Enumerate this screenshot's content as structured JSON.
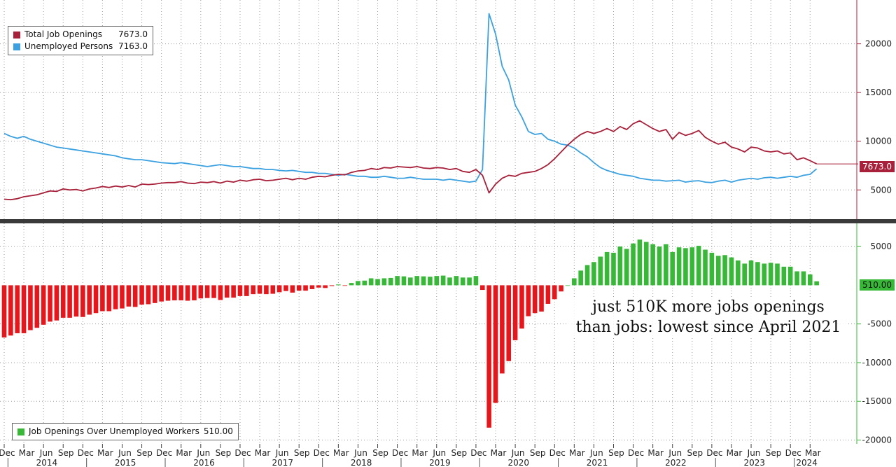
{
  "legend_top": [
    {
      "name": "Total Job Openings",
      "value": "7673.0",
      "color": "#a8203a"
    },
    {
      "name": "Unemployed Persons",
      "value": "7163.0",
      "color": "#3ba1e0"
    }
  ],
  "legend_bottom": [
    {
      "name": "Job Openings Over Unemployed Workers",
      "value": "510.00",
      "color": "#37b837"
    }
  ],
  "annotation": {
    "line1": "just 510K more jobs openings",
    "line2": "than jobs: lowest since April 2021"
  },
  "top_badge": "7673.0",
  "bottom_badge": "510.00",
  "x_axis": {
    "month_labels": [
      "Dec",
      "Mar",
      "Jun",
      "Sep"
    ],
    "years": [
      "2014",
      "2015",
      "2016",
      "2017",
      "2018",
      "2019",
      "2020",
      "2021",
      "2022",
      "2023",
      "2024"
    ],
    "last_labels": [
      "Dec",
      "Mar",
      "Jun"
    ]
  },
  "colors": {
    "openings": "#a8203a",
    "unemployed": "#3ba1e0",
    "positive": "#37b837",
    "negative": "#e8161b",
    "badge_top": "#a8203a",
    "badge_bottom": "#37b837"
  },
  "chart_data": [
    {
      "type": "line",
      "x_start": "2013-12",
      "x_end": "2024-06",
      "frequency": "monthly",
      "yaxis_ticks": [
        5000,
        10000,
        15000,
        20000
      ],
      "ylim": [
        2000,
        24500
      ],
      "series": [
        {
          "name": "Total Job Openings",
          "color": "#a8203a",
          "last_value": 7673.0,
          "values": [
            4050,
            4000,
            4100,
            4300,
            4400,
            4500,
            4700,
            4900,
            4850,
            5100,
            5000,
            5050,
            4900,
            5100,
            5200,
            5350,
            5250,
            5400,
            5300,
            5450,
            5300,
            5600,
            5550,
            5600,
            5700,
            5750,
            5750,
            5850,
            5700,
            5650,
            5800,
            5750,
            5850,
            5700,
            5900,
            5800,
            6000,
            5900,
            6050,
            6100,
            5950,
            6000,
            6100,
            6200,
            6050,
            6200,
            6100,
            6300,
            6400,
            6350,
            6500,
            6600,
            6550,
            6800,
            6950,
            7000,
            7200,
            7100,
            7300,
            7250,
            7400,
            7350,
            7300,
            7400,
            7250,
            7200,
            7300,
            7250,
            7100,
            7200,
            6900,
            6800,
            7100,
            6500,
            4700,
            5600,
            6200,
            6500,
            6400,
            6700,
            6800,
            6900,
            7200,
            7600,
            8200,
            8900,
            9600,
            10200,
            10700,
            11000,
            10800,
            11000,
            11300,
            11000,
            11500,
            11200,
            11800,
            12100,
            11700,
            11300,
            11000,
            11200,
            10200,
            10900,
            10600,
            10800,
            11100,
            10400,
            10000,
            9700,
            9900,
            9400,
            9200,
            8900,
            9400,
            9300,
            9000,
            8900,
            9000,
            8700,
            8800,
            8100,
            8300,
            8000,
            7673
          ]
        },
        {
          "name": "Unemployed Persons",
          "color": "#3ba1e0",
          "last_value": 7163.0,
          "values": [
            10800,
            10500,
            10300,
            10500,
            10200,
            10000,
            9800,
            9600,
            9400,
            9300,
            9200,
            9100,
            9000,
            8900,
            8800,
            8700,
            8600,
            8500,
            8300,
            8200,
            8100,
            8100,
            8000,
            7900,
            7800,
            7750,
            7700,
            7800,
            7700,
            7600,
            7500,
            7400,
            7500,
            7600,
            7500,
            7400,
            7400,
            7300,
            7200,
            7200,
            7100,
            7100,
            7000,
            6950,
            7000,
            6900,
            6800,
            6800,
            6700,
            6700,
            6600,
            6500,
            6600,
            6500,
            6400,
            6400,
            6300,
            6300,
            6400,
            6300,
            6200,
            6200,
            6300,
            6200,
            6100,
            6100,
            6100,
            6000,
            6100,
            6000,
            5900,
            5800,
            5900,
            7100,
            23100,
            21000,
            17700,
            16300,
            13700,
            12500,
            11000,
            10700,
            10800,
            10200,
            10000,
            9700,
            9600,
            9300,
            8800,
            8400,
            7800,
            7300,
            7000,
            6800,
            6600,
            6500,
            6400,
            6200,
            6100,
            6000,
            6000,
            5900,
            5950,
            6000,
            5800,
            5900,
            5950,
            5800,
            5750,
            5900,
            6000,
            5800,
            6000,
            6100,
            6200,
            6100,
            6250,
            6300,
            6200,
            6300,
            6400,
            6300,
            6500,
            6600,
            7163
          ]
        }
      ]
    },
    {
      "type": "bar",
      "series_name": "Job Openings Over Unemployed Workers",
      "x_start": "2013-12",
      "x_end": "2024-06",
      "frequency": "monthly",
      "yaxis_ticks": [
        5000,
        0,
        -5000,
        -10000,
        -15000,
        -20000
      ],
      "ylim": [
        -20500,
        8000
      ],
      "last_value": 510.0,
      "values": [
        -6750,
        -6500,
        -6200,
        -6200,
        -5800,
        -5500,
        -5100,
        -4700,
        -4550,
        -4200,
        -4200,
        -4050,
        -4100,
        -3800,
        -3600,
        -3350,
        -3350,
        -3100,
        -3000,
        -2750,
        -2800,
        -2500,
        -2450,
        -2300,
        -2100,
        -2000,
        -1950,
        -1950,
        -2000,
        -1950,
        -1700,
        -1650,
        -1650,
        -1900,
        -1600,
        -1600,
        -1400,
        -1400,
        -1150,
        -1100,
        -1150,
        -1100,
        -900,
        -750,
        -950,
        -700,
        -700,
        -500,
        -300,
        -350,
        -100,
        100,
        -50,
        300,
        550,
        600,
        900,
        800,
        900,
        950,
        1200,
        1150,
        1000,
        1200,
        1150,
        1100,
        1200,
        1250,
        1000,
        1200,
        1000,
        1000,
        1200,
        -600,
        -18400,
        -15200,
        -11400,
        -9800,
        -7100,
        -5600,
        -4000,
        -3600,
        -3400,
        -2400,
        -1800,
        -800,
        0,
        900,
        1900,
        2600,
        3000,
        3700,
        4300,
        4200,
        5000,
        4700,
        5400,
        5900,
        5600,
        5300,
        5000,
        5300,
        4300,
        4900,
        4800,
        4900,
        5100,
        4600,
        4200,
        3800,
        3900,
        3600,
        3200,
        2800,
        3200,
        3000,
        2800,
        2900,
        2800,
        2400,
        2400,
        1800,
        1800,
        1400,
        510
      ]
    }
  ]
}
